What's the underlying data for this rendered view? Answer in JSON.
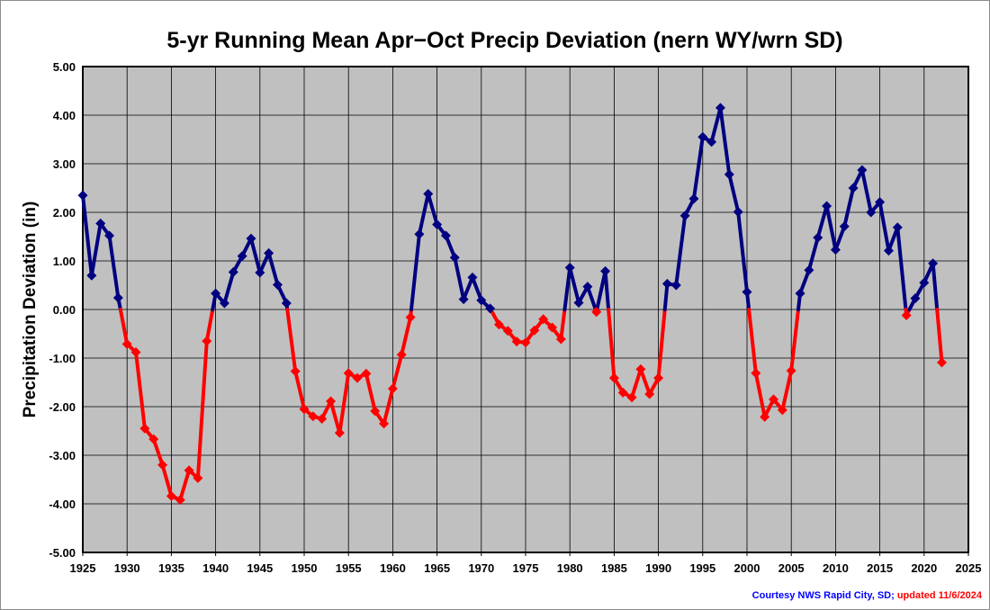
{
  "chart_data": {
    "type": "line",
    "title": "5-yr Running Mean Apr−Oct Precip Deviation (nern WY/wrn SD)",
    "xlabel": "",
    "ylabel": "Precipitation Deviation (in)",
    "xlim": [
      1925,
      2025
    ],
    "ylim": [
      -5.0,
      5.0
    ],
    "x_ticks": [
      1925,
      1930,
      1935,
      1940,
      1945,
      1950,
      1955,
      1960,
      1965,
      1970,
      1975,
      1980,
      1985,
      1990,
      1995,
      2000,
      2005,
      2010,
      2015,
      2020,
      2025
    ],
    "y_ticks": [
      "5.00",
      "4.00",
      "3.00",
      "2.00",
      "1.00",
      "0.00",
      "-1.00",
      "-2.00",
      "-3.00",
      "-4.00",
      "-5.00"
    ],
    "grid": true,
    "legend": "none",
    "positive_color": "#000080",
    "negative_color": "#ff0000",
    "plot_background": "#c0c0c0",
    "series": [
      {
        "x": [
          1925,
          1926,
          1927,
          1928,
          1929,
          1930,
          1931,
          1932,
          1933,
          1934,
          1935,
          1936,
          1937,
          1938,
          1939,
          1940,
          1941,
          1942,
          1943,
          1944,
          1945,
          1946,
          1947,
          1948,
          1949,
          1950,
          1951,
          1952,
          1953,
          1954,
          1955,
          1956,
          1957,
          1958,
          1959,
          1960,
          1961,
          1962,
          1963,
          1964,
          1965,
          1966,
          1967,
          1968,
          1969,
          1970,
          1971,
          1972,
          1973,
          1974,
          1975,
          1976,
          1977,
          1978,
          1979,
          1980,
          1981,
          1982,
          1983,
          1984,
          1985,
          1986,
          1987,
          1988,
          1989,
          1990,
          1991,
          1992,
          1993,
          1994,
          1995,
          1996,
          1997,
          1998,
          1999,
          2000,
          2001,
          2002,
          2003,
          2004,
          2005,
          2006,
          2007,
          2008,
          2009,
          2010,
          2011,
          2012,
          2013,
          2014,
          2015,
          2016,
          2017,
          2018,
          2019,
          2020,
          2021,
          2022
        ],
        "values": [
          2.35,
          0.7,
          1.77,
          1.52,
          0.24,
          -0.71,
          -0.88,
          -2.45,
          -2.67,
          -3.2,
          -3.84,
          -3.92,
          -3.31,
          -3.47,
          -0.65,
          0.33,
          0.13,
          0.77,
          1.1,
          1.46,
          0.76,
          1.16,
          0.51,
          0.13,
          -1.27,
          -2.05,
          -2.2,
          -2.25,
          -1.89,
          -2.54,
          -1.31,
          -1.41,
          -1.32,
          -2.09,
          -2.35,
          -1.63,
          -0.93,
          -0.16,
          1.55,
          2.38,
          1.75,
          1.52,
          1.07,
          0.21,
          0.66,
          0.19,
          0.02,
          -0.31,
          -0.44,
          -0.66,
          -0.68,
          -0.43,
          -0.2,
          -0.37,
          -0.61,
          0.86,
          0.14,
          0.47,
          -0.05,
          0.79,
          -1.41,
          -1.71,
          -1.81,
          -1.23,
          -1.74,
          -1.41,
          0.53,
          0.5,
          1.93,
          2.28,
          3.55,
          3.45,
          4.15,
          2.78,
          2.01,
          0.36,
          -1.31,
          -2.21,
          -1.85,
          -2.07,
          -1.26,
          0.33,
          0.81,
          1.48,
          2.13,
          1.23,
          1.71,
          2.5,
          2.87,
          2.0,
          2.21,
          1.21,
          1.69,
          -0.12,
          0.23,
          0.55,
          0.95,
          -1.09
        ]
      }
    ]
  },
  "credit": {
    "source": "Courtesy NWS Rapid City, SD;",
    "updated": "updated 11/6/2024",
    "source_color": "#0000ff",
    "updated_color": "#ff0000"
  }
}
